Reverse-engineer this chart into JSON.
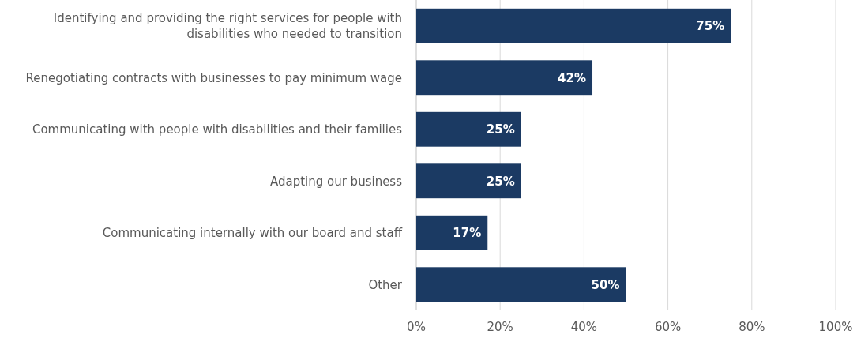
{
  "chart_data": {
    "type": "bar",
    "orientation": "horizontal",
    "categories": [
      "Identifying and providing the right services for people with disabilities who needed to transition",
      "Renegotiating contracts with businesses to pay minimum wage",
      "Communicating with people with disabilities and their families",
      "Adapting our business",
      "Communicating internally with our board and staff",
      "Other"
    ],
    "values": [
      75,
      42,
      25,
      25,
      17,
      50
    ],
    "value_labels": [
      "75%",
      "42%",
      "25%",
      "25%",
      "17%",
      "50%"
    ],
    "color": "#1b3a63",
    "xlim": [
      0,
      100
    ],
    "xticks": [
      {
        "value": 0,
        "label": "0%"
      },
      {
        "value": 20,
        "label": "20%"
      },
      {
        "value": 40,
        "label": "40%"
      },
      {
        "value": 60,
        "label": "60%"
      },
      {
        "value": 80,
        "label": "80%"
      },
      {
        "value": 100,
        "label": "100%"
      }
    ],
    "grid": "x"
  }
}
